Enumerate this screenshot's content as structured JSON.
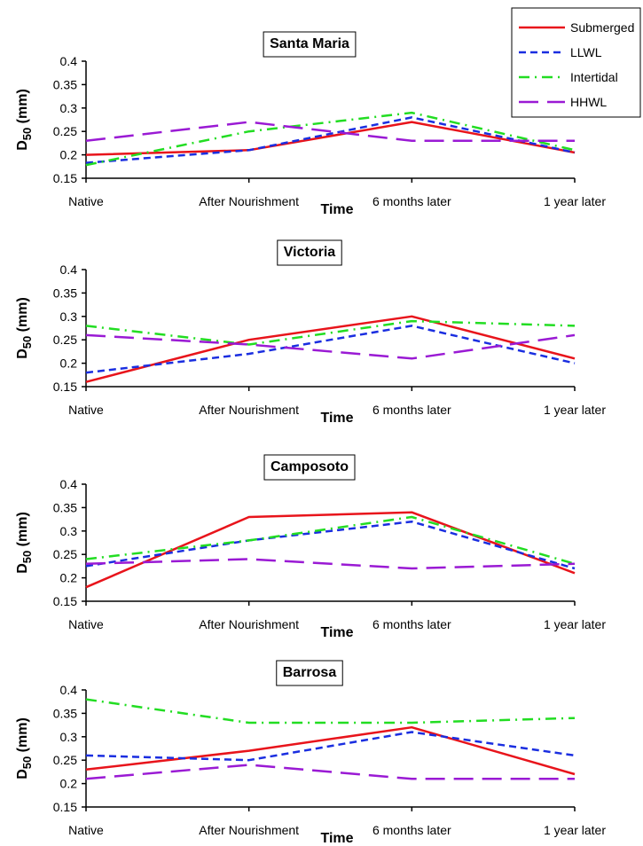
{
  "legend": [
    {
      "name": "Submerged",
      "color": "#e8141b",
      "dash": "solid"
    },
    {
      "name": "LLWL",
      "color": "#1a2ee0",
      "dash": "dashed"
    },
    {
      "name": "Intertidal",
      "color": "#22dd22",
      "dash": "dashdot"
    },
    {
      "name": "HHWL",
      "color": "#9a1ad4",
      "dash": "longdash"
    }
  ],
  "chart_data": [
    {
      "type": "line",
      "title": "Santa Maria",
      "categories": [
        "Native",
        "After Nourishment",
        "6 months later",
        "1 year later"
      ],
      "xlabel": "Time",
      "ylabel_main": "D",
      "ylabel_sub": "50",
      "ylabel_unit": " (mm)",
      "ylim": [
        0.15,
        0.4
      ],
      "yticks": [
        "0.15",
        "0.2",
        "0.25",
        "0.3",
        "0.35",
        "0.4"
      ],
      "series": [
        {
          "name": "Submerged",
          "values": [
            0.2,
            0.21,
            0.27,
            0.205
          ]
        },
        {
          "name": "LLWL",
          "values": [
            0.183,
            0.21,
            0.28,
            0.205
          ]
        },
        {
          "name": "Intertidal",
          "values": [
            0.178,
            0.25,
            0.29,
            0.21
          ]
        },
        {
          "name": "HHWL",
          "values": [
            0.23,
            0.27,
            0.23,
            0.23
          ]
        }
      ]
    },
    {
      "type": "line",
      "title": "Victoria",
      "categories": [
        "Native",
        "After Nourishment",
        "6 months later",
        "1 year later"
      ],
      "xlabel": "Time",
      "ylabel_main": "D",
      "ylabel_sub": "50",
      "ylabel_unit": " (mm)",
      "ylim": [
        0.15,
        0.4
      ],
      "yticks": [
        "0.15",
        "0.2",
        "0.25",
        "0.3",
        "0.35",
        "0.4"
      ],
      "series": [
        {
          "name": "Submerged",
          "values": [
            0.16,
            0.25,
            0.3,
            0.21
          ]
        },
        {
          "name": "LLWL",
          "values": [
            0.18,
            0.22,
            0.28,
            0.2
          ]
        },
        {
          "name": "Intertidal",
          "values": [
            0.28,
            0.24,
            0.29,
            0.28
          ]
        },
        {
          "name": "HHWL",
          "values": [
            0.26,
            0.24,
            0.21,
            0.26
          ]
        }
      ]
    },
    {
      "type": "line",
      "title": "Camposoto",
      "categories": [
        "Native",
        "After Nourishment",
        "6 months later",
        "1 year later"
      ],
      "xlabel": "Time",
      "ylabel_main": "D",
      "ylabel_sub": "50",
      "ylabel_unit": " (mm)",
      "ylim": [
        0.15,
        0.4
      ],
      "yticks": [
        "0.15",
        "0.2",
        "0.25",
        "0.3",
        "0.35",
        "0.4"
      ],
      "series": [
        {
          "name": "Submerged",
          "values": [
            0.18,
            0.33,
            0.34,
            0.21
          ]
        },
        {
          "name": "LLWL",
          "values": [
            0.225,
            0.28,
            0.32,
            0.22
          ]
        },
        {
          "name": "Intertidal",
          "values": [
            0.24,
            0.28,
            0.33,
            0.23
          ]
        },
        {
          "name": "HHWL",
          "values": [
            0.23,
            0.24,
            0.22,
            0.23
          ]
        }
      ]
    },
    {
      "type": "line",
      "title": "Barrosa",
      "categories": [
        "Native",
        "After Nourishment",
        "6 months later",
        "1 year later"
      ],
      "xlabel": "Time",
      "ylabel_main": "D",
      "ylabel_sub": "50",
      "ylabel_unit": " (mm)",
      "ylim": [
        0.15,
        0.4
      ],
      "yticks": [
        "0.15",
        "0.2",
        "0.25",
        "0.3",
        "0.35",
        "0.4"
      ],
      "series": [
        {
          "name": "Submerged",
          "values": [
            0.23,
            0.27,
            0.32,
            0.22
          ]
        },
        {
          "name": "LLWL",
          "values": [
            0.26,
            0.25,
            0.31,
            0.26
          ]
        },
        {
          "name": "Intertidal",
          "values": [
            0.38,
            0.33,
            0.33,
            0.34
          ]
        },
        {
          "name": "HHWL",
          "values": [
            0.21,
            0.24,
            0.21,
            0.21
          ]
        }
      ]
    }
  ]
}
